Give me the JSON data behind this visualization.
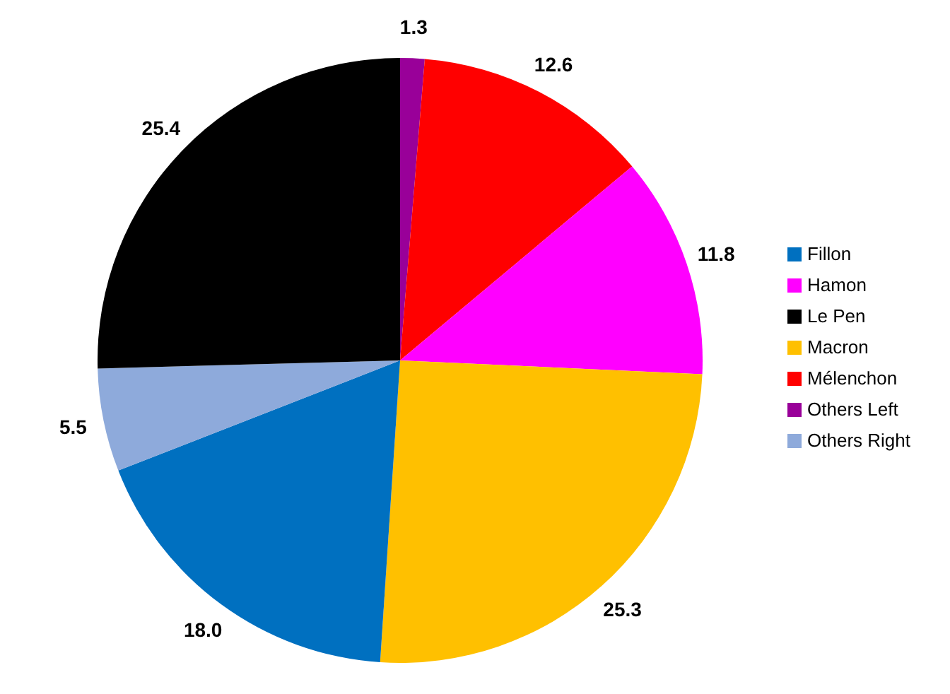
{
  "chart_data": {
    "type": "pie",
    "categories": [
      "Others Left",
      "Mélenchon",
      "Hamon",
      "Macron",
      "Fillon",
      "Others Right",
      "Le Pen"
    ],
    "values": [
      1.3,
      12.6,
      11.8,
      25.3,
      18.0,
      5.5,
      25.4
    ],
    "value_labels": [
      "1.3",
      "12.6",
      "11.8",
      "25.3",
      "18.0",
      "5.5",
      "25.4"
    ],
    "colors": [
      "#990099",
      "#ff0000",
      "#ff00ff",
      "#ffc000",
      "#0070c0",
      "#8eaadb",
      "#000000"
    ],
    "legend": "right"
  }
}
